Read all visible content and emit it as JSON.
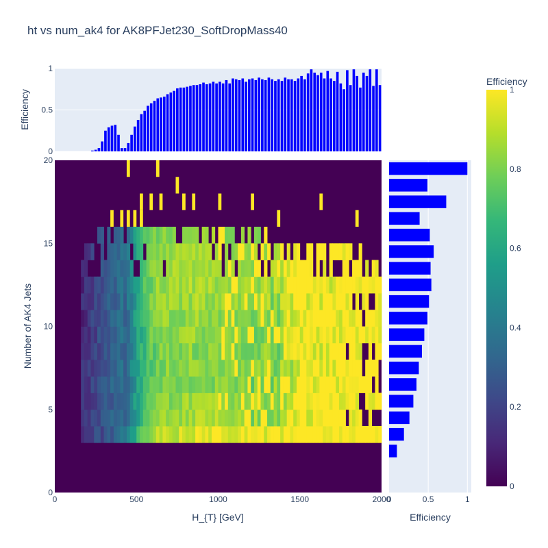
{
  "title": "ht vs num_ak4 for AK8PFJet230_SoftDropMass40",
  "colors": {
    "panel_bg": "#e5ecf6",
    "bar": "#0000ff",
    "grid": "#ffffff",
    "text": "#2a3f5f",
    "colorscale": [
      "#440154",
      "#482878",
      "#3e4989",
      "#31688e",
      "#26828e",
      "#1f9e89",
      "#35b779",
      "#6ece58",
      "#b5de2b",
      "#fde725"
    ]
  },
  "chart_data": [
    {
      "type": "heatmap",
      "panel": "main",
      "xlabel": "H_{T} [GeV]",
      "ylabel": "Number of AK4 Jets",
      "xlim": [
        0,
        2000
      ],
      "ylim": [
        0,
        20
      ],
      "xticks": [
        0,
        500,
        1000,
        1500,
        2000
      ],
      "yticks": [
        0,
        5,
        10,
        15,
        20
      ],
      "x_bin_width": 20,
      "y_bin_width": 1,
      "z_range": [
        0,
        1
      ],
      "grid": false,
      "description_rows": "efficiency per (H_T bin, N_AK4 bin); rows 0-2 are zero, rows with 3-15 jets follow a turn-on near H_T 400-600 GeV and saturate near 1 at high H_T; sparse isolated cells of value 1 appear at 15-20 jets",
      "row_plateau": {
        "3": 0.92,
        "4": 0.86,
        "5": 0.84,
        "6": 0.82,
        "7": 0.82,
        "8": 0.82,
        "9": 0.83,
        "10": 0.84,
        "11": 0.85,
        "12": 0.86,
        "13": 0.85,
        "14": 0.84,
        "15": 0.82
      },
      "sparse_high_cells": [
        {
          "ht": 450,
          "njet": 19
        },
        {
          "ht": 630,
          "njet": 19
        },
        {
          "ht": 750,
          "njet": 18
        },
        {
          "ht": 530,
          "njet": 17
        },
        {
          "ht": 590,
          "njet": 17
        },
        {
          "ht": 650,
          "njet": 17
        },
        {
          "ht": 790,
          "njet": 17
        },
        {
          "ht": 850,
          "njet": 17
        },
        {
          "ht": 1010,
          "njet": 17
        },
        {
          "ht": 1210,
          "njet": 17
        },
        {
          "ht": 1630,
          "njet": 17
        },
        {
          "ht": 350,
          "njet": 16
        },
        {
          "ht": 410,
          "njet": 16
        },
        {
          "ht": 450,
          "njet": 16
        },
        {
          "ht": 490,
          "njet": 16
        },
        {
          "ht": 530,
          "njet": 16
        },
        {
          "ht": 1370,
          "njet": 16
        },
        {
          "ht": 1850,
          "njet": 16
        }
      ]
    },
    {
      "type": "bar",
      "panel": "top",
      "ylabel": "Efficiency",
      "ylim": [
        0,
        1
      ],
      "yticks": [
        0,
        0.5,
        1
      ],
      "x_start": 0,
      "x_step": 20,
      "values": [
        0,
        0,
        0,
        0,
        0,
        0,
        0,
        0,
        0,
        0,
        0,
        0.01,
        0.02,
        0.04,
        0.12,
        0.25,
        0.29,
        0.31,
        0.32,
        0.2,
        0.04,
        0.04,
        0.1,
        0.2,
        0.3,
        0.38,
        0.45,
        0.49,
        0.55,
        0.58,
        0.61,
        0.64,
        0.65,
        0.66,
        0.69,
        0.71,
        0.73,
        0.76,
        0.77,
        0.77,
        0.78,
        0.79,
        0.8,
        0.8,
        0.81,
        0.83,
        0.81,
        0.82,
        0.84,
        0.82,
        0.84,
        0.82,
        0.86,
        0.82,
        0.88,
        0.87,
        0.86,
        0.88,
        0.84,
        0.87,
        0.88,
        0.86,
        0.89,
        0.87,
        0.86,
        0.89,
        0.87,
        0.85,
        0.87,
        0.85,
        0.89,
        0.87,
        0.87,
        0.85,
        0.88,
        0.91,
        0.87,
        0.94,
        0.99,
        0.95,
        0.92,
        0.95,
        0.88,
        0.97,
        0.88,
        0.85,
        0.96,
        0.82,
        0.75,
        0.98,
        0.8,
        0.99,
        0.91,
        0.77,
        0.95,
        0.91,
        0.99,
        0.79,
        0.99,
        0.8
      ]
    },
    {
      "type": "bar",
      "panel": "right",
      "orientation": "horizontal",
      "xlabel": "Efficiency",
      "xlim": [
        0,
        1.05
      ],
      "xticks": [
        0,
        0.5,
        1
      ],
      "categories": [
        2,
        3,
        4,
        5,
        6,
        7,
        8,
        9,
        10,
        11,
        12,
        13,
        14,
        15,
        16,
        17,
        18,
        19
      ],
      "values": [
        0.1,
        0.19,
        0.26,
        0.31,
        0.35,
        0.38,
        0.42,
        0.45,
        0.49,
        0.51,
        0.54,
        0.53,
        0.57,
        0.52,
        0.39,
        0.73,
        0.49,
        1.0
      ]
    }
  ],
  "colorbar": {
    "title": "Efficiency",
    "range": [
      0,
      1
    ],
    "ticks": [
      0,
      0.2,
      0.4,
      0.6,
      0.8,
      1
    ],
    "tick_labels": [
      "0",
      "0.2",
      "0.4",
      "0.6",
      "0.8",
      "1"
    ]
  }
}
